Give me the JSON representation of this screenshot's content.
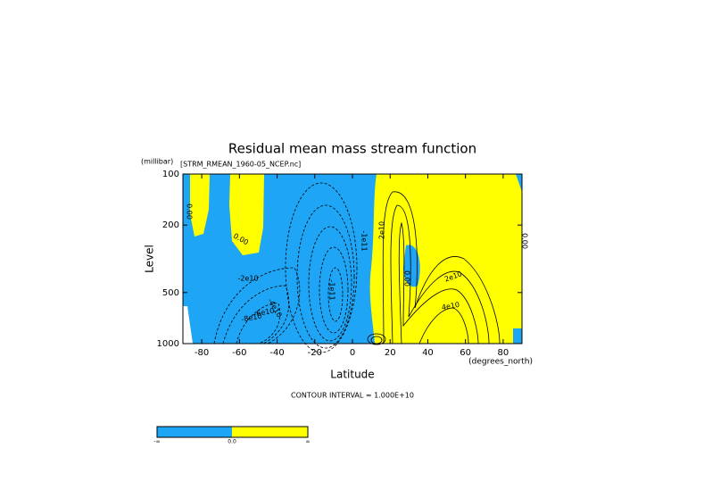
{
  "chart_data": {
    "type": "contour",
    "title": "Residual mean mass stream function",
    "dataset": "[STRM_RMEAN_1960-05_NCEP.nc]",
    "y_unit": "(millibar)",
    "ylabel": "Level",
    "xlabel": "Latitude",
    "x_unit": "(degrees_north)",
    "note": "CONTOUR INTERVAL = 1.000E+10",
    "xlim": [
      -90,
      90
    ],
    "xticks": [
      -80,
      -60,
      -40,
      -20,
      0,
      20,
      40,
      60,
      80
    ],
    "ylim": [
      1000,
      100
    ],
    "yticks": [
      100,
      200,
      500,
      1000
    ],
    "ylog": true,
    "negative_color": "#1ea5f5",
    "positive_color": "#ffff00",
    "contour_labels": [
      "0.00",
      "0.00",
      "-2e10",
      "-4e10",
      "-6e10",
      "-8e10",
      "-1e11",
      "-1e11",
      "2e10",
      "0.00",
      "2e10",
      "4e10",
      "0.00"
    ],
    "colorbar_labels": [
      "-∞",
      "0.0",
      "∞"
    ]
  }
}
